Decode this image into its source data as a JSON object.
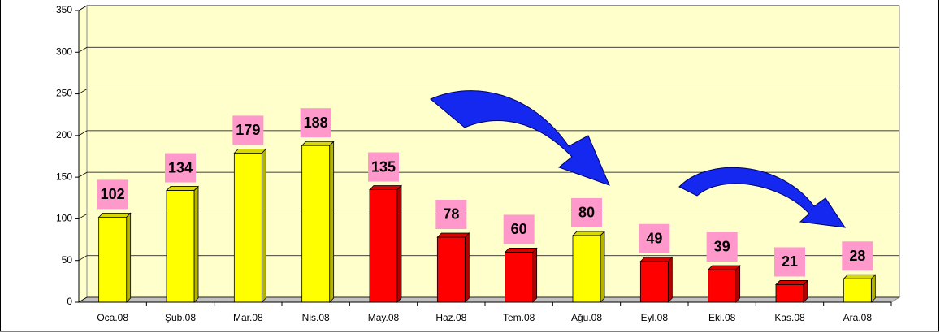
{
  "chart_data": {
    "type": "bar3d",
    "categories": [
      "Oca.08",
      "Şub.08",
      "Mar.08",
      "Nis.08",
      "May.08",
      "Haz.08",
      "Tem.08",
      "Ağu.08",
      "Eyl.08",
      "Eki.08",
      "Kas.08",
      "Ara.08"
    ],
    "values": [
      102,
      134,
      179,
      188,
      135,
      78,
      60,
      80,
      49,
      39,
      21,
      28
    ],
    "colors": [
      "#ffff00",
      "#ffff00",
      "#ffff00",
      "#ffff00",
      "#ff0000",
      "#ff0000",
      "#ff0000",
      "#ffff00",
      "#ff0000",
      "#ff0000",
      "#ff0000",
      "#ffff00"
    ],
    "ylim": [
      0,
      350
    ],
    "yticks": [
      0,
      50,
      100,
      150,
      200,
      250,
      300,
      350
    ],
    "grid": true
  }
}
